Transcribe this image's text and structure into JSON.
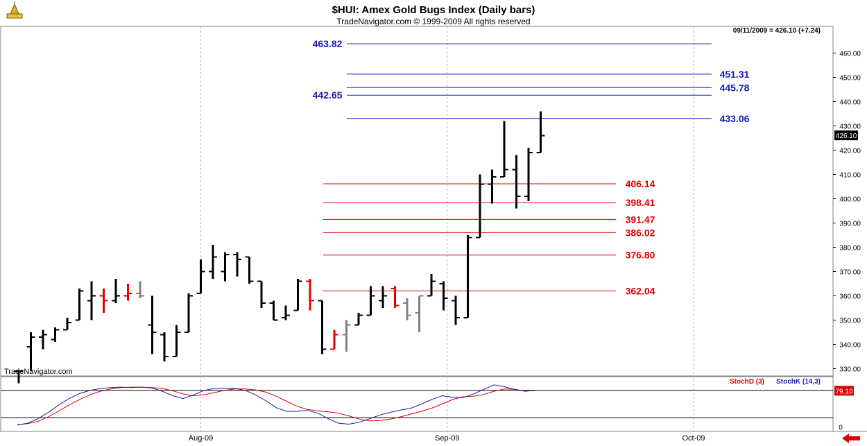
{
  "header": {
    "title": "$HUI:  Amex Gold Bugs Index  (Daily bars)",
    "subtitle": "TradeNavigator.com © 1999-2009 All rights reserved",
    "last_quote": "09/11/2009 = 426.10 (+7.24)",
    "watermark": "TradeNavigator.com"
  },
  "colors": {
    "up_bar": "#000000",
    "down_bar": "#e00000",
    "neutral_bar": "#808080",
    "fib_above": "#1a1ab0",
    "fib_below": "#dd0000",
    "stoch_d": "#dd0000",
    "stoch_k": "#1a1ab0"
  },
  "chart_data": [
    {
      "type": "ohlc",
      "ylim": [
        327,
        471
      ],
      "y_ticks": [
        "330.00",
        "340.00",
        "350.00",
        "360.00",
        "370.00",
        "380.00",
        "390.00",
        "400.00",
        "410.00",
        "420.00",
        "430.00",
        "440.00",
        "450.00",
        "460.00"
      ],
      "x_labels": [
        "Aug-09",
        "Sep-09",
        "Oct-09"
      ],
      "last_price_label": "426.10",
      "bars": [
        {
          "o": 329,
          "h": 329,
          "l": 324,
          "c": 329,
          "color": "black"
        },
        {
          "o": 339,
          "h": 345,
          "l": 329,
          "c": 343,
          "color": "black"
        },
        {
          "o": 343,
          "h": 346,
          "l": 338,
          "c": 344,
          "color": "black"
        },
        {
          "o": 342,
          "h": 347,
          "l": 341,
          "c": 346,
          "color": "black"
        },
        {
          "o": 346,
          "h": 351,
          "l": 346,
          "c": 349,
          "color": "black"
        },
        {
          "o": 350,
          "h": 363,
          "l": 350,
          "c": 362,
          "color": "black"
        },
        {
          "o": 358,
          "h": 366,
          "l": 350,
          "c": 360,
          "color": "black"
        },
        {
          "o": 360,
          "h": 363,
          "l": 353,
          "c": 358,
          "color": "red"
        },
        {
          "o": 358,
          "h": 367,
          "l": 357,
          "c": 360,
          "color": "black"
        },
        {
          "o": 360,
          "h": 365,
          "l": 358,
          "c": 361,
          "color": "red"
        },
        {
          "o": 361,
          "h": 366,
          "l": 359,
          "c": 360,
          "color": "gray"
        },
        {
          "o": 348,
          "h": 360,
          "l": 336,
          "c": 345,
          "color": "black"
        },
        {
          "o": 344,
          "h": 345,
          "l": 333,
          "c": 335,
          "color": "black"
        },
        {
          "o": 335,
          "h": 348,
          "l": 335,
          "c": 345,
          "color": "black"
        },
        {
          "o": 345,
          "h": 361,
          "l": 345,
          "c": 360,
          "color": "black"
        },
        {
          "o": 361,
          "h": 375,
          "l": 361,
          "c": 370,
          "color": "black"
        },
        {
          "o": 370,
          "h": 381,
          "l": 367,
          "c": 376,
          "color": "black"
        },
        {
          "o": 370,
          "h": 378,
          "l": 366,
          "c": 377,
          "color": "black"
        },
        {
          "o": 377,
          "h": 378,
          "l": 368,
          "c": 375,
          "color": "black"
        },
        {
          "o": 376,
          "h": 376,
          "l": 365,
          "c": 366,
          "color": "black"
        },
        {
          "o": 366,
          "h": 366,
          "l": 355,
          "c": 357,
          "color": "black"
        },
        {
          "o": 357,
          "h": 358,
          "l": 350,
          "c": 350,
          "color": "black"
        },
        {
          "o": 351,
          "h": 356,
          "l": 350,
          "c": 352,
          "color": "black"
        },
        {
          "o": 354,
          "h": 367,
          "l": 354,
          "c": 366,
          "color": "black"
        },
        {
          "o": 366,
          "h": 367,
          "l": 354,
          "c": 358,
          "color": "red"
        },
        {
          "o": 358,
          "h": 358,
          "l": 336,
          "c": 338,
          "color": "black"
        },
        {
          "o": 338,
          "h": 346,
          "l": 338,
          "c": 344,
          "color": "red"
        },
        {
          "o": 344,
          "h": 350,
          "l": 337,
          "c": 348,
          "color": "gray"
        },
        {
          "o": 348,
          "h": 353,
          "l": 348,
          "c": 352,
          "color": "black"
        },
        {
          "o": 352,
          "h": 364,
          "l": 352,
          "c": 360,
          "color": "black"
        },
        {
          "o": 358,
          "h": 364,
          "l": 355,
          "c": 360,
          "color": "black"
        },
        {
          "o": 363,
          "h": 364,
          "l": 355,
          "c": 356,
          "color": "red"
        },
        {
          "o": 357,
          "h": 359,
          "l": 350,
          "c": 352,
          "color": "gray"
        },
        {
          "o": 353,
          "h": 360,
          "l": 345,
          "c": 360,
          "color": "gray"
        },
        {
          "o": 360,
          "h": 369,
          "l": 360,
          "c": 366,
          "color": "black"
        },
        {
          "o": 365,
          "h": 366,
          "l": 354,
          "c": 359,
          "color": "black"
        },
        {
          "o": 358,
          "h": 360,
          "l": 348,
          "c": 351,
          "color": "black"
        },
        {
          "o": 351,
          "h": 385,
          "l": 351,
          "c": 384,
          "color": "black"
        },
        {
          "o": 384,
          "h": 410,
          "l": 384,
          "c": 406,
          "color": "black"
        },
        {
          "o": 406,
          "h": 412,
          "l": 398,
          "c": 409,
          "color": "black"
        },
        {
          "o": 409,
          "h": 432,
          "l": 409,
          "c": 412,
          "color": "black"
        },
        {
          "o": 412,
          "h": 418,
          "l": 396,
          "c": 401,
          "color": "black"
        },
        {
          "o": 401,
          "h": 421,
          "l": 399,
          "c": 419,
          "color": "black"
        },
        {
          "o": 419,
          "h": 436,
          "l": 419,
          "c": 426,
          "color": "black"
        }
      ],
      "fib_levels_above": [
        {
          "label": "463.82",
          "value": 463.82
        },
        {
          "label": "451.31",
          "value": 451.31
        },
        {
          "label": "445.78",
          "value": 445.78
        },
        {
          "label": "442.65",
          "value": 442.65
        },
        {
          "label": "433.06",
          "value": 433.06
        }
      ],
      "fib_levels_below": [
        {
          "label": "406.14",
          "value": 406.14
        },
        {
          "label": "398.41",
          "value": 398.41
        },
        {
          "label": "391.47",
          "value": 391.47
        },
        {
          "label": "386.02",
          "value": 386.02
        },
        {
          "label": "376.80",
          "value": 376.8
        },
        {
          "label": "362.04",
          "value": 362.04
        }
      ]
    },
    {
      "type": "line",
      "ylim": [
        -10,
        110
      ],
      "y_tick_label": "0",
      "last_value_label": "79.10",
      "reference_lines": [
        80,
        20
      ],
      "series": [
        {
          "name": "StochD (3)",
          "color": "#dd0000",
          "values": [
            5,
            7,
            12,
            22,
            35,
            48,
            60,
            70,
            78,
            83,
            86,
            87,
            87,
            86,
            84,
            79,
            72,
            68,
            70,
            75,
            80,
            83,
            83,
            81,
            76,
            67,
            56,
            45,
            38,
            35,
            33,
            30,
            24,
            17,
            13,
            14,
            17,
            22,
            28,
            34,
            41,
            50,
            60,
            66,
            67,
            71,
            78,
            83,
            82,
            79,
            79
          ]
        },
        {
          "name": "StochK (14,3)",
          "color": "#1a1ab0",
          "values": [
            4,
            8,
            18,
            32,
            48,
            62,
            73,
            80,
            84,
            86,
            87,
            86,
            87,
            85,
            78,
            68,
            62,
            70,
            80,
            84,
            84,
            84,
            80,
            70,
            57,
            42,
            34,
            34,
            36,
            30,
            18,
            8,
            6,
            10,
            18,
            26,
            32,
            37,
            41,
            50,
            60,
            68,
            65,
            64,
            72,
            82,
            92,
            88,
            82,
            78,
            80
          ]
        }
      ]
    }
  ]
}
